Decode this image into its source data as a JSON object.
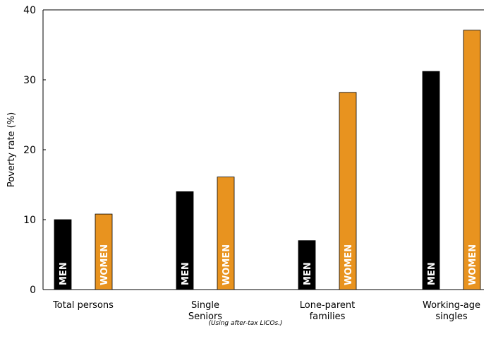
{
  "chart_data": {
    "type": "bar",
    "title": "",
    "ylabel": "Poverty rate (%)",
    "xlabel": "",
    "ylim": [
      0,
      40
    ],
    "yticks": [
      0,
      10,
      20,
      30,
      40
    ],
    "grid": false,
    "categories": [
      [
        "Total persons"
      ],
      [
        "Single",
        "Seniors"
      ],
      [
        "Lone-parent",
        "families"
      ],
      [
        "Working-age",
        "singles"
      ]
    ],
    "series": [
      {
        "name": "MEN",
        "color": "#000000",
        "label_color": "#ffffff",
        "values": [
          10,
          14,
          7,
          31.2
        ]
      },
      {
        "name": "WOMEN",
        "color": "#e8931f",
        "label_color": "#ffffff",
        "values": [
          10.8,
          16.1,
          28.2,
          37.1
        ]
      }
    ],
    "note": "(Using after-tax LICOs.)"
  }
}
